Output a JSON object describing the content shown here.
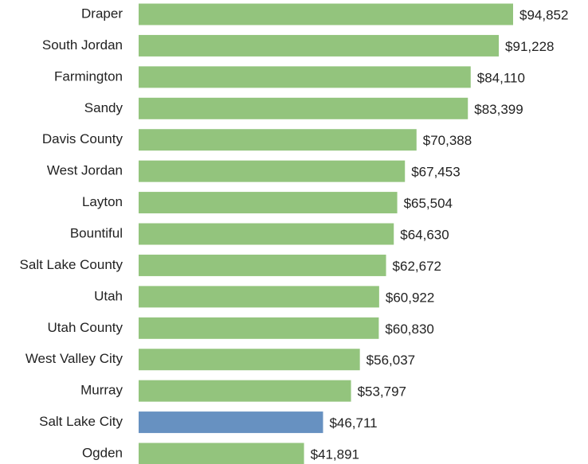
{
  "chart_data": {
    "type": "bar",
    "orientation": "horizontal",
    "categories": [
      "Draper",
      "South Jordan",
      "Farmington",
      "Sandy",
      "Davis County",
      "West Jordan",
      "Layton",
      "Bountiful",
      "Salt Lake County",
      "Utah",
      "Utah County",
      "West Valley City",
      "Murray",
      "Salt Lake City",
      "Ogden"
    ],
    "values": [
      94852,
      91228,
      84110,
      83399,
      70388,
      67453,
      65504,
      64630,
      62672,
      60922,
      60830,
      56037,
      53797,
      46711,
      41891
    ],
    "value_labels": [
      "$94,852",
      "$91,228",
      "$84,110",
      "$83,399",
      "$70,388",
      "$67,453",
      "$65,504",
      "$64,630",
      "$62,672",
      "$60,922",
      "$60,830",
      "$56,037",
      "$53,797",
      "$46,711",
      "$41,891"
    ],
    "colors": [
      "#93c47d",
      "#93c47d",
      "#93c47d",
      "#93c47d",
      "#93c47d",
      "#93c47d",
      "#93c47d",
      "#93c47d",
      "#93c47d",
      "#93c47d",
      "#93c47d",
      "#93c47d",
      "#93c47d",
      "#6791c1",
      "#93c47d"
    ],
    "xlim": [
      0,
      100000
    ]
  }
}
